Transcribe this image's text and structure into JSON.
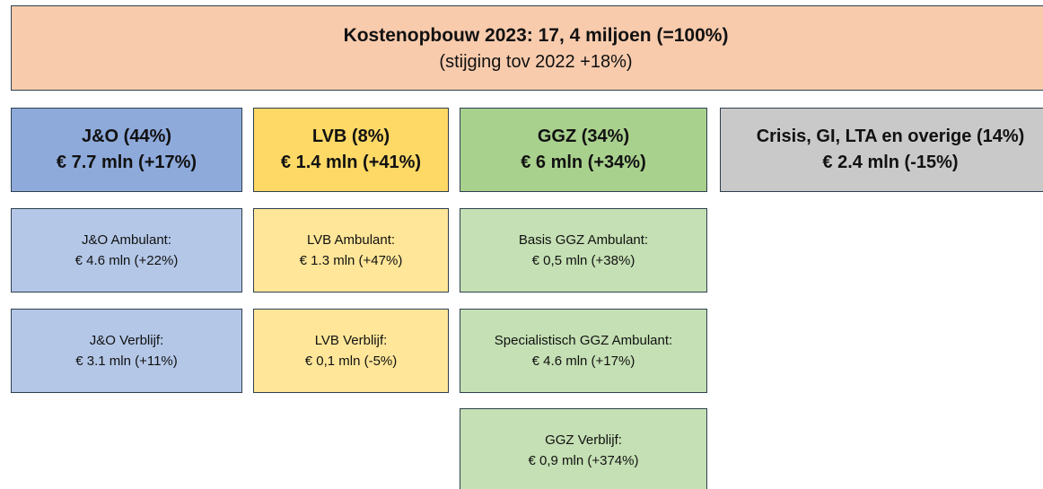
{
  "header": {
    "title": "Kostenopbouw 2023: 17, 4 miljoen (=100%)",
    "subtitle": "(stijging tov 2022 +18%)"
  },
  "columns": [
    {
      "title": "J&O (44%)",
      "amount": "€ 7.7 mln (+17%)",
      "items": [
        {
          "name": "J&O Ambulant:",
          "amount": "€ 4.6 mln (+22%)"
        },
        {
          "name": "J&O Verblijf:",
          "amount": "€ 3.1 mln (+11%)"
        }
      ]
    },
    {
      "title": "LVB (8%)",
      "amount": "€ 1.4 mln (+41%)",
      "items": [
        {
          "name": "LVB Ambulant:",
          "amount": "€ 1.3 mln (+47%)"
        },
        {
          "name": "LVB Verblijf:",
          "amount": "€ 0,1 mln (-5%)"
        }
      ]
    },
    {
      "title": "GGZ (34%)",
      "amount": "€ 6 mln (+34%)",
      "items": [
        {
          "name": "Basis GGZ Ambulant:",
          "amount": "€ 0,5 mln (+38%)"
        },
        {
          "name": "Specialistisch  GGZ Ambulant:",
          "amount": "€ 4.6 mln (+17%)"
        },
        {
          "name": "GGZ Verblijf:",
          "amount": "€ 0,9 mln (+374%)"
        }
      ]
    },
    {
      "title": "Crisis, GI, LTA en overige (14%)",
      "amount": "€ 2.4 mln (-15%)",
      "items": []
    }
  ]
}
